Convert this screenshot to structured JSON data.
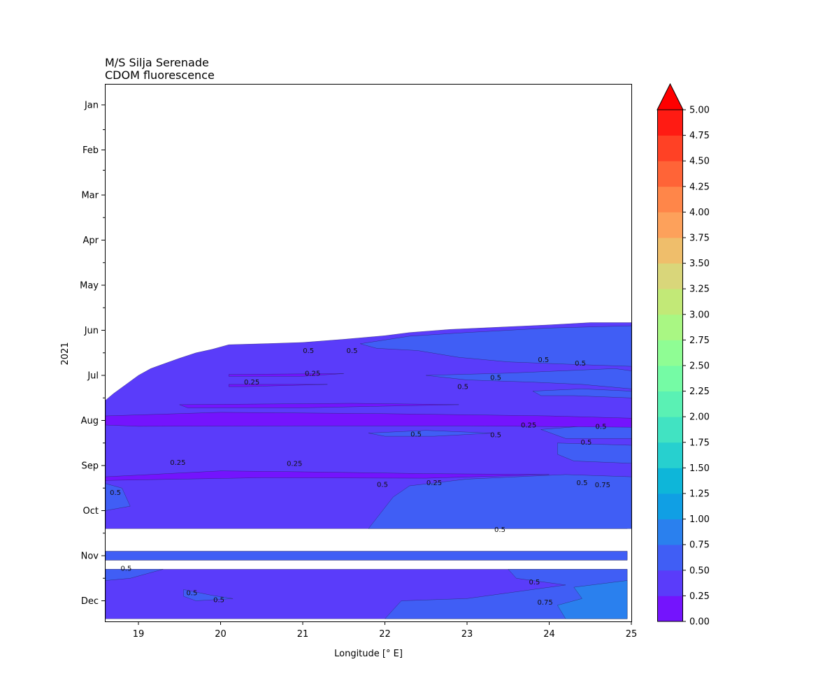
{
  "chart_data": {
    "type": "heatmap",
    "subtype": "filled-contour",
    "title": [
      "M/S Silja Serenade",
      "CDOM fluorescence"
    ],
    "xlabel": "Longitude [° E]",
    "ylabel": "2021",
    "xlim": [
      18.6,
      25.0
    ],
    "x_ticks": [
      19,
      20,
      21,
      22,
      23,
      24,
      25
    ],
    "y_ticks": [
      "Jan",
      "Feb",
      "Mar",
      "Apr",
      "May",
      "Jun",
      "Jul",
      "Aug",
      "Sep",
      "Oct",
      "Nov",
      "Dec"
    ],
    "y_axis_inverted": true,
    "grid": false,
    "colorbar": {
      "levels": [
        0.0,
        0.25,
        0.5,
        0.75,
        1.0,
        1.25,
        1.5,
        1.75,
        2.0,
        2.25,
        2.5,
        2.75,
        3.0,
        3.25,
        3.5,
        3.75,
        4.0,
        4.25,
        4.5,
        4.75,
        5.0
      ],
      "labels": [
        "0.00",
        "0.25",
        "0.50",
        "0.75",
        "1.00",
        "1.25",
        "1.50",
        "1.75",
        "2.00",
        "2.25",
        "2.50",
        "2.75",
        "3.00",
        "3.25",
        "3.50",
        "3.75",
        "4.00",
        "4.25",
        "4.50",
        "4.75",
        "5.00"
      ],
      "colors": [
        "#7414fd",
        "#5a3cfa",
        "#405ef5",
        "#2a80ee",
        "#109fe4",
        "#0eb6d9",
        "#27d0cf",
        "#41e3c2",
        "#5af1b4",
        "#75fba5",
        "#8ffd94",
        "#a9f783",
        "#c2e977",
        "#d9d67a",
        "#efbe6b",
        "#fda15b",
        "#ff8649",
        "#ff6437",
        "#ff4125",
        "#ff1b13"
      ],
      "extend": "max",
      "extend_color": "#ff0000"
    },
    "contour_labels": [
      {
        "text": "0.5",
        "lon": 21.07,
        "month": 5.45
      },
      {
        "text": "0.5",
        "lon": 21.6,
        "month": 5.45
      },
      {
        "text": "0.25",
        "lon": 21.12,
        "month": 5.95
      },
      {
        "text": "0.25",
        "lon": 20.38,
        "month": 6.15
      },
      {
        "text": "0.5",
        "lon": 23.93,
        "month": 5.65
      },
      {
        "text": "0.5",
        "lon": 24.38,
        "month": 5.73
      },
      {
        "text": "0.5",
        "lon": 23.35,
        "month": 6.05
      },
      {
        "text": "0.5",
        "lon": 22.95,
        "month": 6.25
      },
      {
        "text": "0.25",
        "lon": 23.75,
        "month": 7.1
      },
      {
        "text": "0.5",
        "lon": 24.63,
        "month": 7.13
      },
      {
        "text": "0.5",
        "lon": 22.38,
        "month": 7.3
      },
      {
        "text": "0.5",
        "lon": 23.35,
        "month": 7.32
      },
      {
        "text": "0.5",
        "lon": 24.45,
        "month": 7.48
      },
      {
        "text": "0.25",
        "lon": 19.48,
        "month": 7.93
      },
      {
        "text": "0.25",
        "lon": 20.9,
        "month": 7.95
      },
      {
        "text": "0.5",
        "lon": 21.97,
        "month": 8.42
      },
      {
        "text": "0.25",
        "lon": 22.6,
        "month": 8.38
      },
      {
        "text": "0.5",
        "lon": 24.4,
        "month": 8.38
      },
      {
        "text": "0.75",
        "lon": 24.65,
        "month": 8.43
      },
      {
        "text": "0.5",
        "lon": 18.72,
        "month": 8.6
      },
      {
        "text": "0.5",
        "lon": 23.4,
        "month": 9.42
      },
      {
        "text": "0.5",
        "lon": 18.85,
        "month": 10.28
      },
      {
        "text": "0.5",
        "lon": 19.65,
        "month": 10.82
      },
      {
        "text": "0.5",
        "lon": 19.98,
        "month": 10.98
      },
      {
        "text": "0.5",
        "lon": 23.82,
        "month": 10.58
      },
      {
        "text": "0.75",
        "lon": 23.95,
        "month": 11.03
      }
    ],
    "regions": [
      {
        "level": 1,
        "note": "background ~0.25-0.5 over covered period (early Jun - Dec)"
      },
      {
        "level": 0,
        "note": "band < 0.25 centred on early Aug across all longitudes"
      },
      {
        "level": 2,
        "note": "patches 0.5-0.75 mainly east of 22 E"
      },
      {
        "level": 3,
        "note": "0.75-1.0 near 24.5-25 E in Dec"
      }
    ],
    "data_gaps_months": [
      [
        9.4,
        9.9
      ],
      [
        10.1,
        10.3
      ]
    ]
  }
}
